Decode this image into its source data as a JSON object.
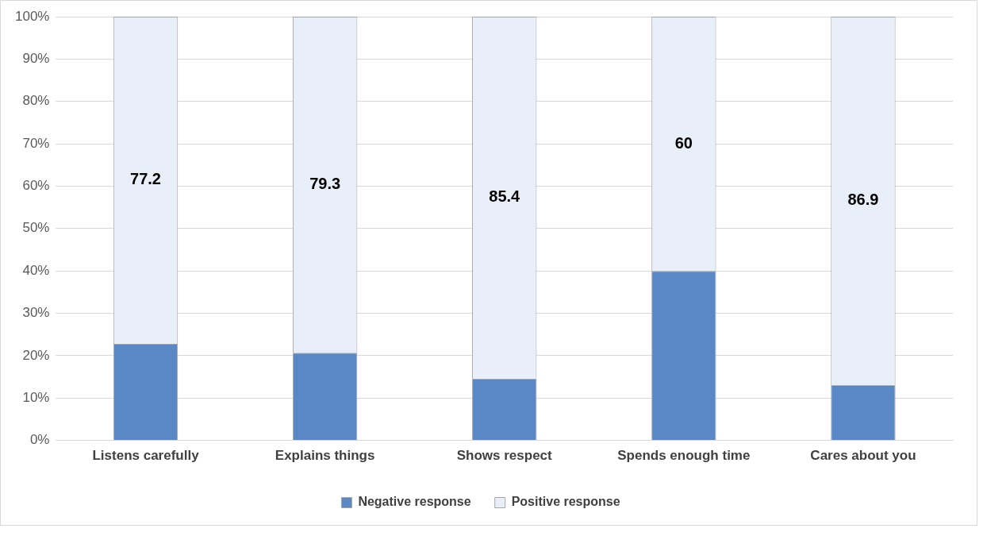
{
  "chart_data": {
    "type": "bar",
    "stacked": true,
    "categories": [
      "Listens carefully",
      "Explains things",
      "Shows respect",
      "Spends enough time",
      "Cares about you"
    ],
    "series": [
      {
        "name": "Negative response",
        "color": "#5a87c5",
        "values": [
          22.8,
          20.7,
          14.6,
          40,
          13.1
        ]
      },
      {
        "name": "Positive response",
        "color": "#e9eff8",
        "values": [
          77.2,
          79.3,
          85.4,
          60,
          86.9
        ],
        "value_labels": [
          "77.2",
          "79.3",
          "85.4",
          "60",
          "86.9"
        ]
      }
    ],
    "ylim": [
      0,
      100
    ],
    "yticks": [
      {
        "value": 0,
        "label": "0%"
      },
      {
        "value": 10,
        "label": "10%"
      },
      {
        "value": 20,
        "label": "20%"
      },
      {
        "value": 30,
        "label": "30%"
      },
      {
        "value": 40,
        "label": "40%"
      },
      {
        "value": 50,
        "label": "50%"
      },
      {
        "value": 60,
        "label": "60%"
      },
      {
        "value": 70,
        "label": "70%"
      },
      {
        "value": 80,
        "label": "80%"
      },
      {
        "value": 90,
        "label": "90%"
      },
      {
        "value": 100,
        "label": "100%"
      }
    ],
    "grid": "y",
    "legend": "bottom"
  }
}
